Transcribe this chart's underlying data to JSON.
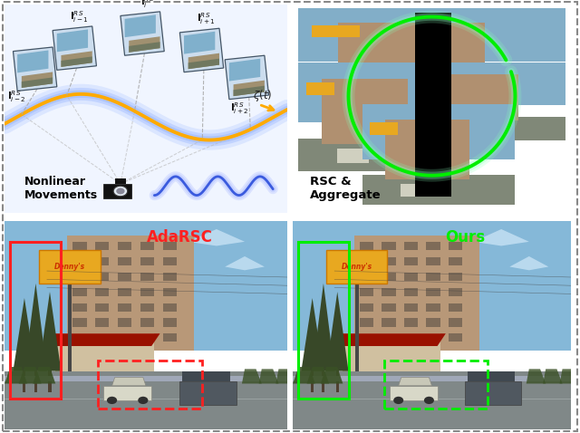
{
  "fig_width": 6.4,
  "fig_height": 4.78,
  "dpi": 100,
  "background_color": "#ffffff",
  "top_left": {
    "bg_color": "#dde8f8",
    "wave_color_glow": "#aaccff",
    "wave_color": "#4477ff",
    "traj_color_glow": "#ffe0a0",
    "traj_color": "#ffaa00",
    "frame_img_sky": "#7aadcc",
    "frame_img_bldg": "#a09080",
    "frame_img_ground": "#7a8a6a",
    "frame_border": "#666677",
    "dashes_color": "#aaaaaa",
    "label_color": "#111111",
    "title": "Nonlinear\nMovements"
  },
  "top_right": {
    "bg_color": "#e8e8e8",
    "img_sky": "#7aadcc",
    "img_bldg": "#a09080",
    "img_road": "#7a8a6a",
    "img_bldg2": "#c8b8a8",
    "black_bar": "#000000",
    "circle_color": "#00ee00",
    "circle_glow": "#88ffbb",
    "title": "RSC &\nAggregate"
  },
  "bottom": {
    "sky_top": "#7ab8d8",
    "sky_bot": "#9ac8e8",
    "bldg_main": "#b8906a",
    "bldg_facade": "#c8a888",
    "bldg_windows": "#887060",
    "bldg_lower": "#d0c0a0",
    "sign_yellow": "#e8a820",
    "sign_text": "#cc6600",
    "restaurant_red": "#aa2200",
    "restaurant_wall": "#d8c8a8",
    "tree_dark": "#304020",
    "tree_mid": "#485830",
    "road_color": "#909090",
    "car_white": "#d8d8c8",
    "car_dark": "#606878",
    "guardrail": "#a0a8b0",
    "pole_color": "#505050",
    "adv_box1_color": "#ff2020",
    "adv_box2_color": "#ff2020",
    "ours_box1_color": "#00ee00",
    "ours_box2_color": "#00ee00",
    "adv_title": "AdaRSC",
    "ours_title": "Ours"
  }
}
